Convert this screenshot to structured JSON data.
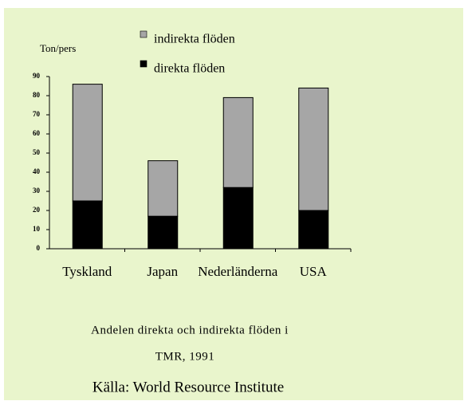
{
  "chart_data": {
    "type": "bar",
    "stacked": true,
    "y_label": "Ton/pers",
    "categories": [
      "Tyskland",
      "Japan",
      "Nederländerna",
      "USA"
    ],
    "series": [
      {
        "name": "direkta flöden",
        "color": "#000000",
        "values": [
          25,
          17,
          32,
          20
        ]
      },
      {
        "name": "indirekta flöden",
        "color": "#a6a6a6",
        "values": [
          61,
          29,
          47,
          64
        ]
      }
    ],
    "ylim": [
      0,
      90
    ],
    "yticks": [
      0,
      10,
      20,
      30,
      40,
      50,
      60,
      70,
      80,
      90
    ],
    "caption": [
      "Andelen direkta och indirekta flöden i",
      "TMR, 1991"
    ],
    "source": "Källa: World Resource Institute"
  }
}
